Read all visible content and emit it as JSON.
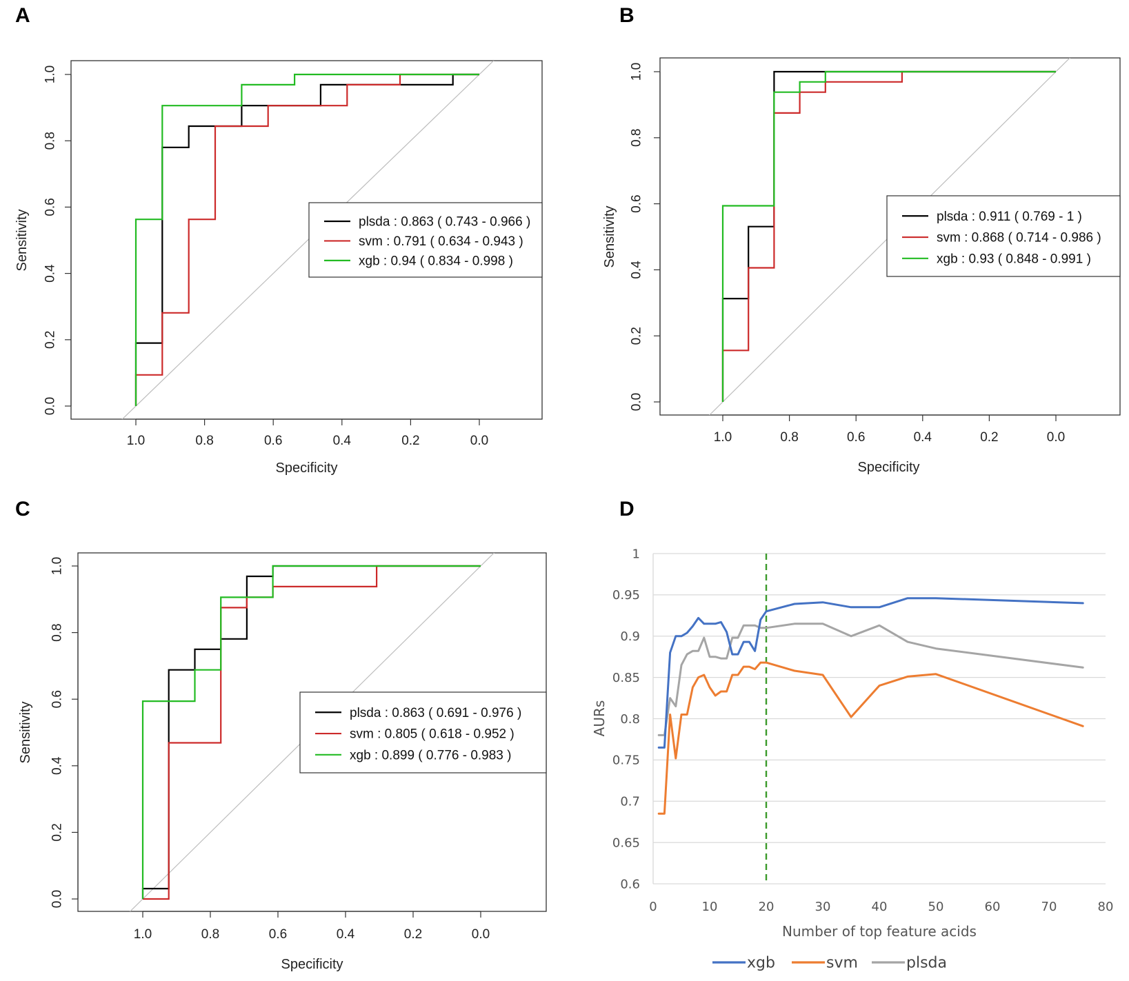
{
  "figure": {
    "letters": [
      "A",
      "B",
      "C",
      "D"
    ]
  },
  "chart_data": [
    {
      "panel": "A",
      "type": "line",
      "subtype": "roc",
      "xlabel": "Specificity",
      "ylabel": "Sensitivity",
      "xlim": [
        1.0,
        0.0
      ],
      "ylim": [
        0.0,
        1.0
      ],
      "x_ticks": [
        "1.0",
        "0.8",
        "0.6",
        "0.4",
        "0.2",
        "0.0"
      ],
      "y_ticks": [
        "0.0",
        "0.2",
        "0.4",
        "0.6",
        "0.8",
        "1.0"
      ],
      "legend_position": "center-right",
      "series": [
        {
          "name": "plsda",
          "label": "plsda : 0.863 ( 0.743 - 0.966 )",
          "color": "#000000",
          "points": [
            [
              1.0,
              0.0
            ],
            [
              1.0,
              0.19
            ],
            [
              0.923,
              0.19
            ],
            [
              0.923,
              0.78
            ],
            [
              0.846,
              0.78
            ],
            [
              0.846,
              0.844
            ],
            [
              0.692,
              0.844
            ],
            [
              0.692,
              0.906
            ],
            [
              0.615,
              0.906
            ],
            [
              0.462,
              0.906
            ],
            [
              0.462,
              0.969
            ],
            [
              0.231,
              0.969
            ],
            [
              0.077,
              0.969
            ],
            [
              0.077,
              1.0
            ],
            [
              0.0,
              1.0
            ]
          ]
        },
        {
          "name": "svm",
          "label": "svm : 0.791 ( 0.634 - 0.943 )",
          "color": "#cc2a2a",
          "points": [
            [
              1.0,
              0.0
            ],
            [
              1.0,
              0.094
            ],
            [
              0.923,
              0.094
            ],
            [
              0.923,
              0.281
            ],
            [
              0.846,
              0.281
            ],
            [
              0.846,
              0.563
            ],
            [
              0.769,
              0.563
            ],
            [
              0.769,
              0.844
            ],
            [
              0.615,
              0.844
            ],
            [
              0.615,
              0.906
            ],
            [
              0.385,
              0.906
            ],
            [
              0.385,
              0.969
            ],
            [
              0.231,
              0.969
            ],
            [
              0.231,
              1.0
            ],
            [
              0.0,
              1.0
            ]
          ]
        },
        {
          "name": "xgb",
          "label": "xgb : 0.94 ( 0.834 - 0.998 )",
          "color": "#22bb22",
          "points": [
            [
              1.0,
              0.0
            ],
            [
              1.0,
              0.563
            ],
            [
              0.923,
              0.563
            ],
            [
              0.923,
              0.906
            ],
            [
              0.692,
              0.906
            ],
            [
              0.692,
              0.969
            ],
            [
              0.538,
              0.969
            ],
            [
              0.538,
              1.0
            ],
            [
              0.0,
              1.0
            ]
          ]
        }
      ]
    },
    {
      "panel": "B",
      "type": "line",
      "subtype": "roc",
      "xlabel": "Specificity",
      "ylabel": "Sensitivity",
      "xlim": [
        1.0,
        0.0
      ],
      "ylim": [
        0.0,
        1.0
      ],
      "x_ticks": [
        "1.0",
        "0.8",
        "0.6",
        "0.4",
        "0.2",
        "0.0"
      ],
      "y_ticks": [
        "0.0",
        "0.2",
        "0.4",
        "0.6",
        "0.8",
        "1.0"
      ],
      "legend_position": "center-right",
      "series": [
        {
          "name": "plsda",
          "label": "plsda : 0.911 ( 0.769 - 1 )",
          "color": "#000000",
          "points": [
            [
              1.0,
              0.0
            ],
            [
              1.0,
              0.313
            ],
            [
              0.923,
              0.313
            ],
            [
              0.923,
              0.531
            ],
            [
              0.846,
              0.531
            ],
            [
              0.846,
              1.0
            ],
            [
              0.692,
              1.0
            ],
            [
              0.0,
              1.0
            ]
          ]
        },
        {
          "name": "svm",
          "label": "svm : 0.868 ( 0.714 - 0.986 )",
          "color": "#cc2a2a",
          "points": [
            [
              1.0,
              0.0
            ],
            [
              1.0,
              0.156
            ],
            [
              0.923,
              0.156
            ],
            [
              0.923,
              0.406
            ],
            [
              0.846,
              0.406
            ],
            [
              0.846,
              0.875
            ],
            [
              0.769,
              0.875
            ],
            [
              0.769,
              0.938
            ],
            [
              0.692,
              0.938
            ],
            [
              0.692,
              0.969
            ],
            [
              0.462,
              0.969
            ],
            [
              0.462,
              1.0
            ],
            [
              0.0,
              1.0
            ]
          ]
        },
        {
          "name": "xgb",
          "label": "xgb : 0.93 ( 0.848 - 0.991 )",
          "color": "#22bb22",
          "points": [
            [
              1.0,
              0.0
            ],
            [
              1.0,
              0.594
            ],
            [
              0.846,
              0.594
            ],
            [
              0.846,
              0.938
            ],
            [
              0.769,
              0.938
            ],
            [
              0.769,
              0.969
            ],
            [
              0.692,
              0.969
            ],
            [
              0.692,
              1.0
            ],
            [
              0.0,
              1.0
            ]
          ]
        }
      ]
    },
    {
      "panel": "C",
      "type": "line",
      "subtype": "roc",
      "xlabel": "Specificity",
      "ylabel": "Sensitivity",
      "xlim": [
        1.0,
        0.0
      ],
      "ylim": [
        0.0,
        1.0
      ],
      "x_ticks": [
        "1.0",
        "0.8",
        "0.6",
        "0.4",
        "0.2",
        "0.0"
      ],
      "y_ticks": [
        "0.0",
        "0.2",
        "0.4",
        "0.6",
        "0.8",
        "1.0"
      ],
      "legend_position": "center-right",
      "series": [
        {
          "name": "plsda",
          "label": "plsda : 0.863 ( 0.691 - 0.976 )",
          "color": "#000000",
          "points": [
            [
              1.0,
              0.0
            ],
            [
              1.0,
              0.031
            ],
            [
              0.923,
              0.031
            ],
            [
              0.923,
              0.688
            ],
            [
              0.846,
              0.688
            ],
            [
              0.846,
              0.75
            ],
            [
              0.769,
              0.75
            ],
            [
              0.769,
              0.781
            ],
            [
              0.692,
              0.781
            ],
            [
              0.692,
              0.969
            ],
            [
              0.615,
              0.969
            ],
            [
              0.615,
              1.0
            ],
            [
              0.0,
              1.0
            ]
          ]
        },
        {
          "name": "svm",
          "label": "svm : 0.805 ( 0.618 - 0.952 )",
          "color": "#cc2a2a",
          "points": [
            [
              1.0,
              0.0
            ],
            [
              0.923,
              0.0
            ],
            [
              0.923,
              0.469
            ],
            [
              0.769,
              0.469
            ],
            [
              0.769,
              0.875
            ],
            [
              0.692,
              0.875
            ],
            [
              0.692,
              0.906
            ],
            [
              0.615,
              0.906
            ],
            [
              0.615,
              0.938
            ],
            [
              0.308,
              0.938
            ],
            [
              0.308,
              1.0
            ],
            [
              0.0,
              1.0
            ]
          ]
        },
        {
          "name": "xgb",
          "label": "xgb : 0.899 ( 0.776 - 0.983 )",
          "color": "#22bb22",
          "points": [
            [
              1.0,
              0.0
            ],
            [
              1.0,
              0.594
            ],
            [
              0.846,
              0.594
            ],
            [
              0.846,
              0.688
            ],
            [
              0.769,
              0.688
            ],
            [
              0.769,
              0.906
            ],
            [
              0.615,
              0.906
            ],
            [
              0.615,
              1.0
            ],
            [
              0.0,
              1.0
            ]
          ]
        }
      ]
    },
    {
      "panel": "D",
      "type": "line",
      "xlabel": "Number of top feature acids",
      "ylabel": "AURs",
      "xlim": [
        0,
        80
      ],
      "ylim": [
        0.6,
        1.0
      ],
      "x_ticks": [
        "0",
        "10",
        "20",
        "30",
        "40",
        "50",
        "60",
        "70",
        "80"
      ],
      "y_ticks": [
        "0.6",
        "0.65",
        "0.7",
        "0.75",
        "0.8",
        "0.85",
        "0.9",
        "0.95",
        "1"
      ],
      "grid": true,
      "reference_line": {
        "x": 20,
        "color": "#3a9a2a",
        "style": "dashed"
      },
      "legend_position": "bottom",
      "series": [
        {
          "name": "xgb",
          "color": "#4472c4",
          "x": [
            1,
            2,
            3,
            4,
            5,
            6,
            7,
            8,
            9,
            10,
            11,
            12,
            13,
            14,
            15,
            16,
            17,
            18,
            19,
            20,
            25,
            30,
            35,
            40,
            45,
            50,
            76
          ],
          "y": [
            0.765,
            0.765,
            0.88,
            0.9,
            0.9,
            0.904,
            0.912,
            0.922,
            0.915,
            0.915,
            0.915,
            0.917,
            0.905,
            0.878,
            0.878,
            0.893,
            0.893,
            0.882,
            0.92,
            0.93,
            0.939,
            0.941,
            0.935,
            0.935,
            0.946,
            0.946,
            0.94
          ]
        },
        {
          "name": "svm",
          "color": "#ed7d31",
          "x": [
            1,
            2,
            3,
            4,
            5,
            6,
            7,
            8,
            9,
            10,
            11,
            12,
            13,
            14,
            15,
            16,
            17,
            18,
            19,
            20,
            25,
            30,
            35,
            40,
            45,
            50,
            76
          ],
          "y": [
            0.685,
            0.685,
            0.805,
            0.752,
            0.805,
            0.805,
            0.838,
            0.85,
            0.853,
            0.838,
            0.828,
            0.833,
            0.833,
            0.853,
            0.853,
            0.863,
            0.863,
            0.86,
            0.868,
            0.868,
            0.858,
            0.853,
            0.802,
            0.84,
            0.851,
            0.854,
            0.791
          ]
        },
        {
          "name": "plsda",
          "color": "#a5a5a5",
          "x": [
            1,
            2,
            3,
            4,
            5,
            6,
            7,
            8,
            9,
            10,
            11,
            12,
            13,
            14,
            15,
            16,
            17,
            18,
            19,
            20,
            25,
            30,
            35,
            40,
            45,
            50,
            76
          ],
          "y": [
            0.78,
            0.78,
            0.825,
            0.815,
            0.865,
            0.878,
            0.882,
            0.882,
            0.898,
            0.875,
            0.875,
            0.873,
            0.873,
            0.898,
            0.898,
            0.913,
            0.913,
            0.913,
            0.91,
            0.91,
            0.915,
            0.915,
            0.9,
            0.913,
            0.893,
            0.885,
            0.862
          ]
        }
      ]
    }
  ]
}
